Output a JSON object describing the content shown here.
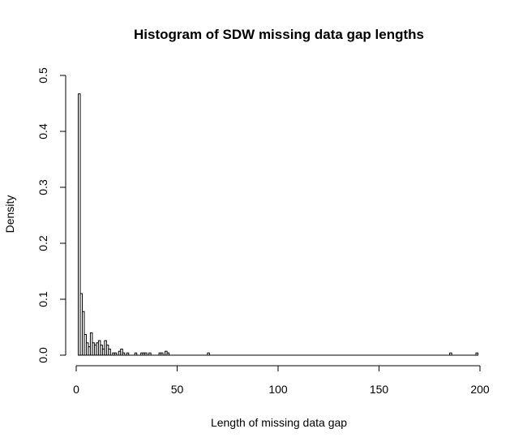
{
  "chart_data": {
    "type": "bar",
    "title": "Histogram of SDW missing data gap lengths",
    "xlabel": "Length of missing data gap",
    "ylabel": "Density",
    "xlim": [
      0,
      200
    ],
    "ylim": [
      0,
      0.5
    ],
    "x_ticks": [
      "0",
      "50",
      "100",
      "150",
      "200"
    ],
    "y_ticks": [
      "0.0",
      "0.1",
      "0.2",
      "0.3",
      "0.4",
      "0.5"
    ],
    "bin_width": 1,
    "bins": [
      {
        "x0": 1,
        "x1": 2,
        "density": 0.467
      },
      {
        "x0": 2,
        "x1": 3,
        "density": 0.11
      },
      {
        "x0": 3,
        "x1": 4,
        "density": 0.078
      },
      {
        "x0": 4,
        "x1": 5,
        "density": 0.037
      },
      {
        "x0": 5,
        "x1": 6,
        "density": 0.022
      },
      {
        "x0": 6,
        "x1": 7,
        "density": 0.015
      },
      {
        "x0": 7,
        "x1": 8,
        "density": 0.04
      },
      {
        "x0": 8,
        "x1": 9,
        "density": 0.022
      },
      {
        "x0": 9,
        "x1": 10,
        "density": 0.018
      },
      {
        "x0": 10,
        "x1": 11,
        "density": 0.022
      },
      {
        "x0": 11,
        "x1": 12,
        "density": 0.026
      },
      {
        "x0": 12,
        "x1": 13,
        "density": 0.018
      },
      {
        "x0": 13,
        "x1": 14,
        "density": 0.011
      },
      {
        "x0": 14,
        "x1": 15,
        "density": 0.026
      },
      {
        "x0": 15,
        "x1": 16,
        "density": 0.018
      },
      {
        "x0": 16,
        "x1": 17,
        "density": 0.011
      },
      {
        "x0": 18,
        "x1": 19,
        "density": 0.004
      },
      {
        "x0": 19,
        "x1": 20,
        "density": 0.004
      },
      {
        "x0": 21,
        "x1": 22,
        "density": 0.007
      },
      {
        "x0": 22,
        "x1": 23,
        "density": 0.011
      },
      {
        "x0": 23,
        "x1": 24,
        "density": 0.004
      },
      {
        "x0": 25,
        "x1": 26,
        "density": 0.004
      },
      {
        "x0": 29,
        "x1": 30,
        "density": 0.004
      },
      {
        "x0": 32,
        "x1": 33,
        "density": 0.004
      },
      {
        "x0": 33,
        "x1": 34,
        "density": 0.004
      },
      {
        "x0": 34,
        "x1": 35,
        "density": 0.004
      },
      {
        "x0": 36,
        "x1": 37,
        "density": 0.004
      },
      {
        "x0": 41,
        "x1": 42,
        "density": 0.004
      },
      {
        "x0": 42,
        "x1": 43,
        "density": 0.004
      },
      {
        "x0": 44,
        "x1": 45,
        "density": 0.007
      },
      {
        "x0": 45,
        "x1": 46,
        "density": 0.004
      },
      {
        "x0": 65,
        "x1": 66,
        "density": 0.004
      },
      {
        "x0": 185,
        "x1": 186,
        "density": 0.004
      },
      {
        "x0": 198,
        "x1": 199,
        "density": 0.004
      }
    ],
    "grid": false,
    "legend": "none",
    "bar_fill": "#ffffff",
    "bar_stroke": "#000000"
  }
}
